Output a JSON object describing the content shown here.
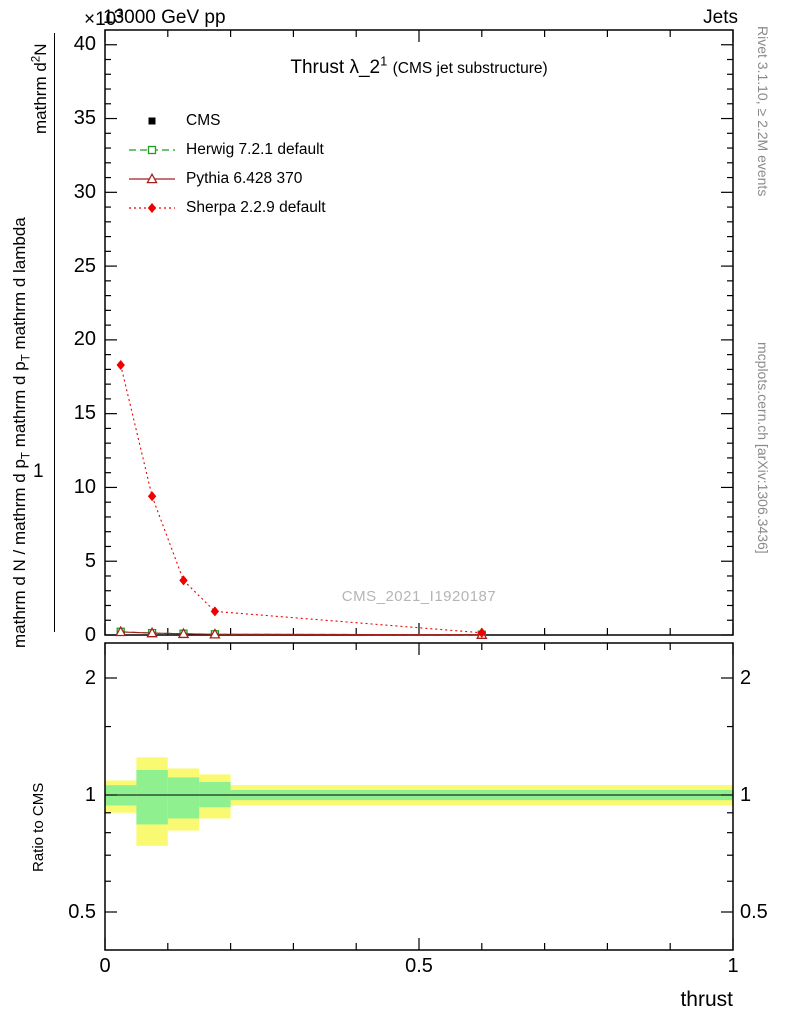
{
  "header": {
    "left": "13000 GeV pp",
    "right": "Jets"
  },
  "scale": {
    "pre": "×10",
    "sup": "3"
  },
  "title": {
    "pre": "Thrust λ_2",
    "sup": "1",
    "paren": "(CMS jet substructure)"
  },
  "watermark": "CMS_2021_I1920187",
  "side_notes": {
    "top_right": "Rivet 3.1.10, ≥ 2.2M events",
    "bottom_right": "mcplots.cern.ch [arXiv:1306.3436]"
  },
  "axes": {
    "x_label": "thrust",
    "ratio_y_label": "Ratio to CMS",
    "main_y_label": {
      "one": "1",
      "num_pre": "mathrm d",
      "num_sup": "2",
      "num_post": "N",
      "den_a": "mathrm d N / mathrm d p",
      "den_a_sub": "T",
      "den_b": " mathrm d p",
      "den_b_sub": "T",
      "den_c": " mathrm d lambda"
    }
  },
  "chart_data": {
    "type": "line",
    "title": "Thrust λ_2^1 (CMS jet substructure)",
    "x_label": "thrust",
    "main_panel": {
      "ylim": [
        0,
        41
      ],
      "yticks": [
        0,
        5,
        10,
        15,
        20,
        25,
        30,
        35,
        40
      ],
      "y_scale_factor": "×10^3",
      "xlim": [
        0,
        1
      ],
      "xticks": [
        0,
        0.5,
        1
      ],
      "x": [
        0.025,
        0.075,
        0.125,
        0.175,
        0.6
      ],
      "series": [
        {
          "name": "CMS",
          "color": "#000000",
          "line": "none",
          "marker": "filled-square",
          "values": [
            0.2,
            0.12,
            0.08,
            0.05,
            0.02
          ]
        },
        {
          "name": "Herwig 7.2.1 default",
          "color": "#1e9e1e",
          "line": "dashed",
          "marker": "open-square",
          "values": [
            0.22,
            0.13,
            0.09,
            0.05,
            0.02
          ]
        },
        {
          "name": "Pythia 6.428 370",
          "color": "#a02020",
          "line": "solid",
          "marker": "open-triangle",
          "values": [
            0.21,
            0.13,
            0.08,
            0.05,
            0.02
          ]
        },
        {
          "name": "Sherpa 2.2.9 default",
          "color": "#ee0000",
          "line": "dotted",
          "marker": "filled-diamond",
          "values": [
            18.3,
            9.4,
            3.7,
            1.6,
            0.15
          ]
        }
      ]
    },
    "ratio_panel": {
      "scale": "log",
      "ylim": [
        0.4,
        2.46
      ],
      "yticks": [
        0.5,
        1,
        2
      ],
      "minor_yticks": [
        0.6,
        0.7,
        0.8,
        0.9,
        1.5
      ],
      "reference_line": 1,
      "band_colors": {
        "yellow": "#fafa72",
        "green": "#8ef08e"
      },
      "bands": [
        {
          "x0": 0,
          "x1": 0.05,
          "yellow": [
            0.9,
            1.09
          ],
          "green": [
            0.94,
            1.06
          ]
        },
        {
          "x0": 0.05,
          "x1": 0.1,
          "yellow": [
            0.74,
            1.25
          ],
          "green": [
            0.84,
            1.16
          ]
        },
        {
          "x0": 0.1,
          "x1": 0.15,
          "yellow": [
            0.81,
            1.17
          ],
          "green": [
            0.87,
            1.11
          ]
        },
        {
          "x0": 0.15,
          "x1": 0.2,
          "yellow": [
            0.87,
            1.13
          ],
          "green": [
            0.93,
            1.08
          ]
        },
        {
          "x0": 0.2,
          "x1": 1.0,
          "yellow": [
            0.94,
            1.06
          ],
          "green": [
            0.97,
            1.03
          ]
        }
      ]
    }
  }
}
